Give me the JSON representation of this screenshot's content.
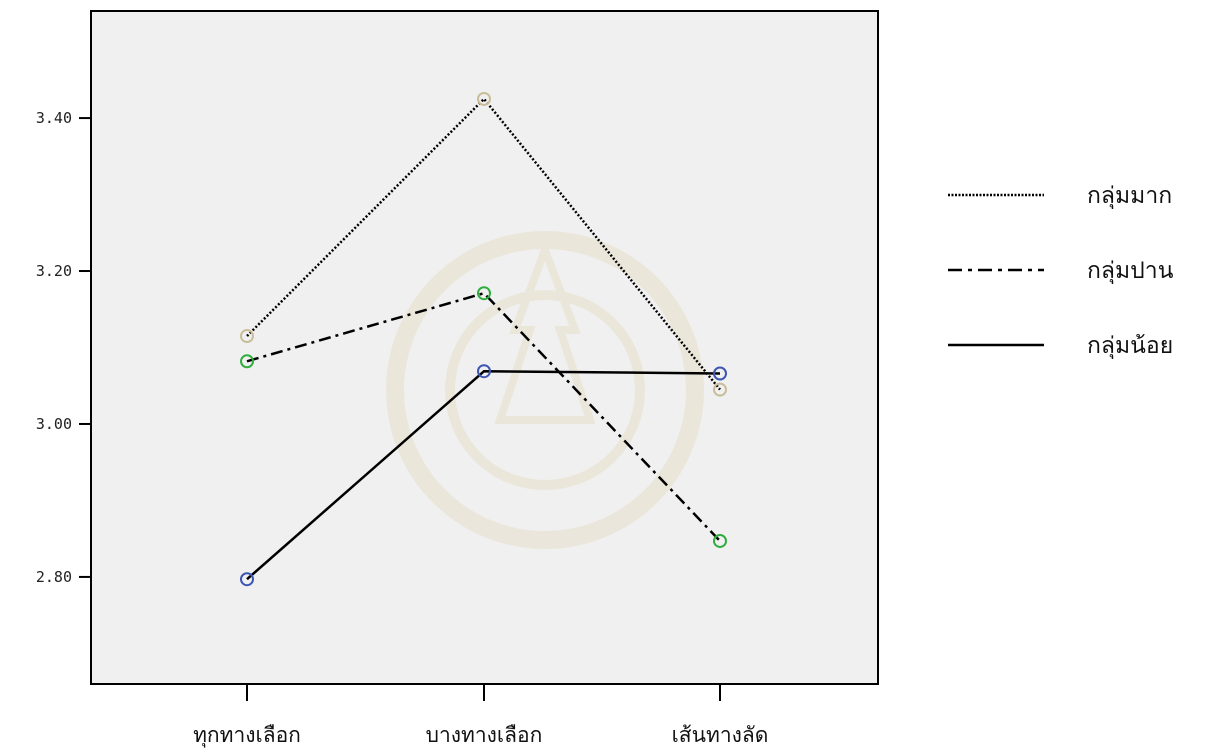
{
  "chart_data": {
    "type": "line",
    "categories": [
      "ทุกทางเลือก",
      "บางทางเลือก",
      "เส้นทางลัด"
    ],
    "ylim": [
      2.66,
      3.54
    ],
    "yticks": [
      2.8,
      3.0,
      3.2,
      3.4
    ],
    "ytick_labels": [
      "2.80",
      "3.00",
      "3.20",
      "3.40"
    ],
    "grid": false,
    "legend_position": "right",
    "series": [
      {
        "name": "กลุ่มมาก",
        "values": [
          3.115,
          3.425,
          3.045
        ],
        "dash": "dotted",
        "marker_color": "#c8bd98"
      },
      {
        "name": "กลุ่มปาน",
        "values": [
          3.082,
          3.171,
          2.847
        ],
        "dash": "dashdot",
        "marker_color": "#2fae3f"
      },
      {
        "name": "กลุ่มน้อย",
        "values": [
          2.797,
          3.069,
          3.066
        ],
        "dash": "solid",
        "marker_color": "#3d55b3"
      }
    ]
  }
}
